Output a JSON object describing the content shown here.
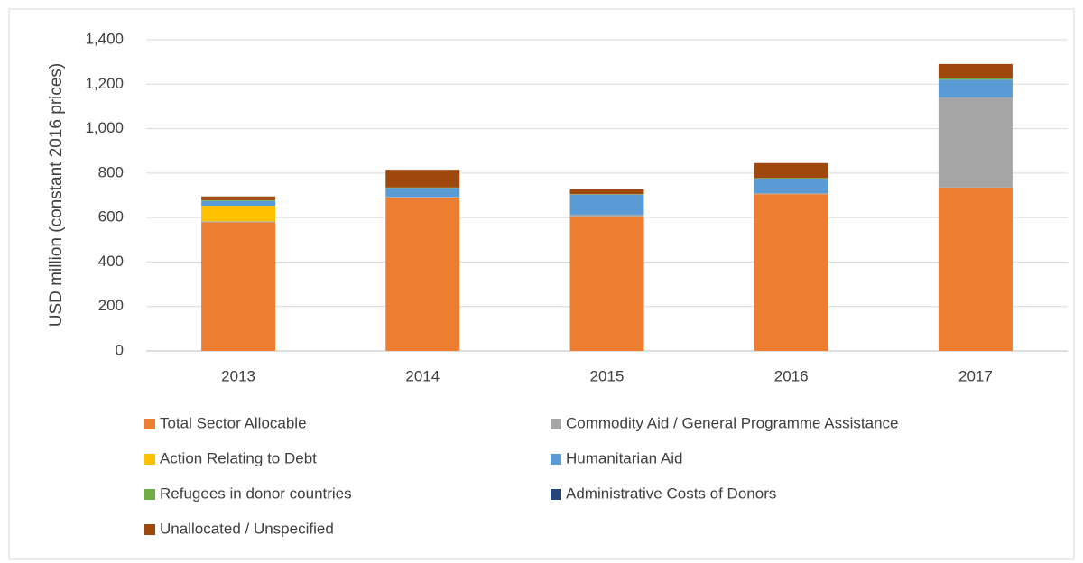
{
  "chart_data": {
    "type": "stacked_bar",
    "y_label": "USD million (constant 2016 prices)",
    "categories": [
      "2013",
      "2014",
      "2015",
      "2016",
      "2017"
    ],
    "series": [
      {
        "name": "Total Sector Allocable",
        "color": "#ed7d31",
        "values": [
          578,
          690,
          605,
          705,
          735
        ]
      },
      {
        "name": "Commodity Aid / General Programme Assistance",
        "color": "#a5a5a5",
        "values": [
          5,
          3,
          8,
          5,
          405
        ]
      },
      {
        "name": "Action Relating to Debt",
        "color": "#ffc000",
        "values": [
          70,
          0,
          0,
          0,
          0
        ]
      },
      {
        "name": "Humanitarian Aid",
        "color": "#5b9bd5",
        "values": [
          22,
          40,
          90,
          65,
          80
        ]
      },
      {
        "name": "Refugees in donor countries",
        "color": "#70ad47",
        "values": [
          3,
          2,
          2,
          3,
          6
        ]
      },
      {
        "name": "Administrative Costs of Donors",
        "color": "#264478",
        "values": [
          0,
          0,
          0,
          0,
          0
        ]
      },
      {
        "name": "Unallocated / Unspecified",
        "color": "#9e480e",
        "values": [
          17,
          80,
          22,
          67,
          65
        ]
      }
    ],
    "ylim": [
      0,
      1400
    ],
    "yticks": [
      0,
      200,
      400,
      600,
      800,
      {
        "value": 1000,
        "label": "1,000"
      },
      {
        "value": 1200,
        "label": "1,200"
      },
      {
        "value": 1400,
        "label": "1,400"
      }
    ],
    "grid": true
  }
}
